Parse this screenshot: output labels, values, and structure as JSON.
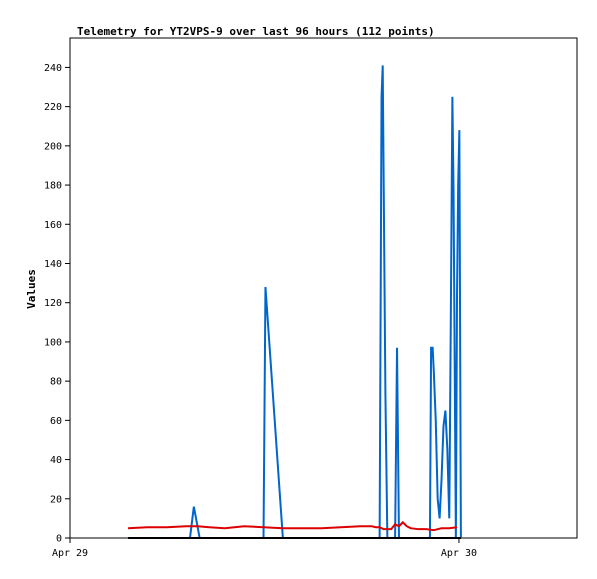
{
  "chart_data": {
    "type": "line",
    "title": "Telemetry for YT2VPS-9 over last 96 hours (112 points)",
    "xlabel": "",
    "ylabel": "Values",
    "xlim": [
      0,
      131
    ],
    "ylim": [
      0,
      255
    ],
    "x_ticks": [
      {
        "x": 0,
        "label": "Apr 29"
      },
      {
        "x": 100.5,
        "label": "Apr 30"
      }
    ],
    "y_ticks": [
      0,
      20,
      40,
      60,
      80,
      100,
      120,
      140,
      160,
      180,
      200,
      220,
      240
    ],
    "grid": false,
    "legend": "none",
    "series": [
      {
        "color": "#0066cc",
        "points": [
          [
            15,
            0
          ],
          [
            31,
            0
          ],
          [
            32,
            16
          ],
          [
            33.5,
            0
          ],
          [
            50,
            0
          ],
          [
            50.5,
            128
          ],
          [
            55,
            0
          ],
          [
            80,
            0
          ],
          [
            80.5,
            225
          ],
          [
            80.8,
            241
          ],
          [
            81.2,
            145
          ],
          [
            81.5,
            73
          ],
          [
            82,
            0
          ],
          [
            84,
            0
          ],
          [
            84.5,
            97
          ],
          [
            85,
            0
          ],
          [
            93,
            0
          ],
          [
            93.3,
            97
          ],
          [
            93.7,
            97
          ],
          [
            94,
            85
          ],
          [
            94.5,
            60
          ],
          [
            95,
            20
          ],
          [
            95.5,
            10
          ],
          [
            96,
            30
          ],
          [
            96.5,
            57
          ],
          [
            97,
            65
          ],
          [
            97.5,
            45
          ],
          [
            98,
            10
          ],
          [
            98.4,
            113
          ],
          [
            98.8,
            225
          ],
          [
            99.1,
            177
          ],
          [
            99.4,
            88
          ],
          [
            99.7,
            0
          ],
          [
            100,
            124
          ],
          [
            100.3,
            180
          ],
          [
            100.6,
            208
          ],
          [
            101,
            0
          ]
        ]
      },
      {
        "color": "#dd0000",
        "points": [
          [
            15,
            5
          ],
          [
            20,
            5.5
          ],
          [
            25,
            5.5
          ],
          [
            30,
            6
          ],
          [
            33,
            6
          ],
          [
            36,
            5.5
          ],
          [
            40,
            5
          ],
          [
            45,
            6
          ],
          [
            50,
            5.5
          ],
          [
            55,
            5
          ],
          [
            60,
            5
          ],
          [
            65,
            5
          ],
          [
            70,
            5.5
          ],
          [
            75,
            6
          ],
          [
            78,
            6
          ],
          [
            79,
            5.5
          ],
          [
            80,
            5.5
          ],
          [
            81,
            4.5
          ],
          [
            83,
            4.5
          ],
          [
            84,
            7
          ],
          [
            85,
            6
          ],
          [
            86,
            8
          ],
          [
            87,
            6
          ],
          [
            88,
            5
          ],
          [
            90,
            4.5
          ],
          [
            92,
            4.5
          ],
          [
            94,
            4
          ],
          [
            96,
            5
          ],
          [
            98,
            5
          ],
          [
            100,
            5.5
          ]
        ]
      },
      {
        "color": "#000000",
        "points": [
          [
            15,
            0
          ],
          [
            101,
            0
          ]
        ]
      }
    ]
  }
}
